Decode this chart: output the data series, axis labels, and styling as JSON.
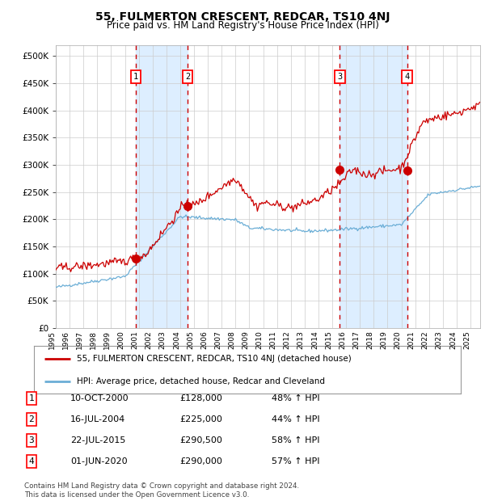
{
  "title": "55, FULMERTON CRESCENT, REDCAR, TS10 4NJ",
  "subtitle": "Price paid vs. HM Land Registry's House Price Index (HPI)",
  "ylim": [
    0,
    520000
  ],
  "yticks": [
    0,
    50000,
    100000,
    150000,
    200000,
    250000,
    300000,
    350000,
    400000,
    450000,
    500000
  ],
  "ytick_labels": [
    "£0",
    "£50K",
    "£100K",
    "£150K",
    "£200K",
    "£250K",
    "£300K",
    "£350K",
    "£400K",
    "£450K",
    "£500K"
  ],
  "xlim_start": 1995.0,
  "xlim_end": 2025.7,
  "sale_dates": [
    2000.78,
    2004.54,
    2015.55,
    2020.42
  ],
  "sale_prices": [
    128000,
    225000,
    290500,
    290000
  ],
  "transaction_labels": [
    "1",
    "2",
    "3",
    "4"
  ],
  "legend_line1": "55, FULMERTON CRESCENT, REDCAR, TS10 4NJ (detached house)",
  "legend_line2": "HPI: Average price, detached house, Redcar and Cleveland",
  "table_data": [
    [
      "1",
      "10-OCT-2000",
      "£128,000",
      "48% ↑ HPI"
    ],
    [
      "2",
      "16-JUL-2004",
      "£225,000",
      "44% ↑ HPI"
    ],
    [
      "3",
      "22-JUL-2015",
      "£290,500",
      "58% ↑ HPI"
    ],
    [
      "4",
      "01-JUN-2020",
      "£290,000",
      "57% ↑ HPI"
    ]
  ],
  "footer": "Contains HM Land Registry data © Crown copyright and database right 2024.\nThis data is licensed under the Open Government Licence v3.0.",
  "hpi_line_color": "#6baed6",
  "price_line_color": "#cc0000",
  "sale_dot_color": "#cc0000",
  "vline_color": "#cc0000",
  "shade_color": "#ddeeff",
  "grid_color": "#cccccc",
  "background_color": "#ffffff",
  "year_ticks": [
    1995,
    1996,
    1997,
    1998,
    1999,
    2000,
    2001,
    2002,
    2003,
    2004,
    2005,
    2006,
    2007,
    2008,
    2009,
    2010,
    2011,
    2012,
    2013,
    2014,
    2015,
    2016,
    2017,
    2018,
    2019,
    2020,
    2021,
    2022,
    2023,
    2024,
    2025
  ]
}
